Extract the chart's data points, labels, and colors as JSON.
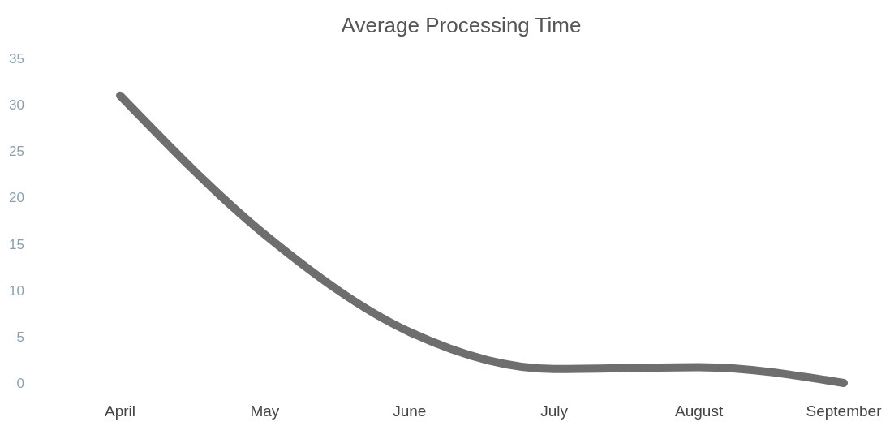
{
  "chart_data": {
    "type": "line",
    "title": "Average Processing Time",
    "categories": [
      "April",
      "May",
      "June",
      "July",
      "August",
      "September"
    ],
    "series": [
      {
        "color": "#6e6e6e",
        "values": [
          31,
          16,
          5.5,
          1.5,
          1.7,
          0
        ]
      }
    ],
    "ylim": [
      0,
      35
    ],
    "yticks": [
      0,
      5,
      10,
      15,
      20,
      25,
      30,
      35
    ],
    "marker": "none",
    "line_style": "solid"
  }
}
